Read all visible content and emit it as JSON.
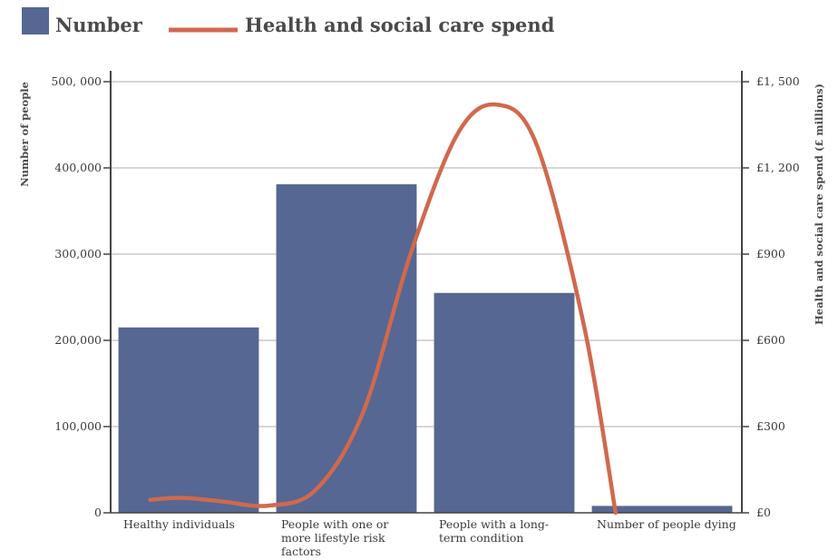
{
  "chart_data": {
    "type": "bar",
    "categories": [
      [
        "Healthy individuals"
      ],
      [
        "People with one or",
        "more lifestyle risk",
        "factors"
      ],
      [
        "People with a long-",
        "term condition"
      ],
      [
        "Number of people dying"
      ]
    ],
    "series": [
      {
        "name": "Number",
        "type": "bar",
        "axis": "left",
        "values": [
          215000,
          381000,
          255000,
          8000
        ]
      },
      {
        "name": "Health and social care spend",
        "type": "line",
        "axis": "right",
        "x": [
          0.25,
          0.45,
          0.7,
          1.0,
          1.3,
          1.6,
          1.9,
          2.2,
          2.45,
          2.7,
          3.0,
          3.2
        ],
        "values": [
          45,
          52,
          40,
          25,
          80,
          350,
          900,
          1320,
          1420,
          1280,
          650,
          0
        ]
      }
    ],
    "ylabel": "Number of people",
    "y2label": "Health and social care spend (£ millions)",
    "ylim": [
      0,
      500000
    ],
    "y2lim": [
      0,
      1500
    ],
    "yticks": [
      "0",
      "100,000",
      "200,000",
      "300,000",
      "400,000",
      "500, 000"
    ],
    "y2ticks": [
      "£0",
      "£300",
      "£600",
      "£900",
      "£1, 200",
      "£1, 500"
    ],
    "grid": true,
    "legend_position": "top-left",
    "colors": {
      "bar": "#556792",
      "line": "#d0694d",
      "grid": "#c9c9c9",
      "axis": "#444444"
    }
  }
}
